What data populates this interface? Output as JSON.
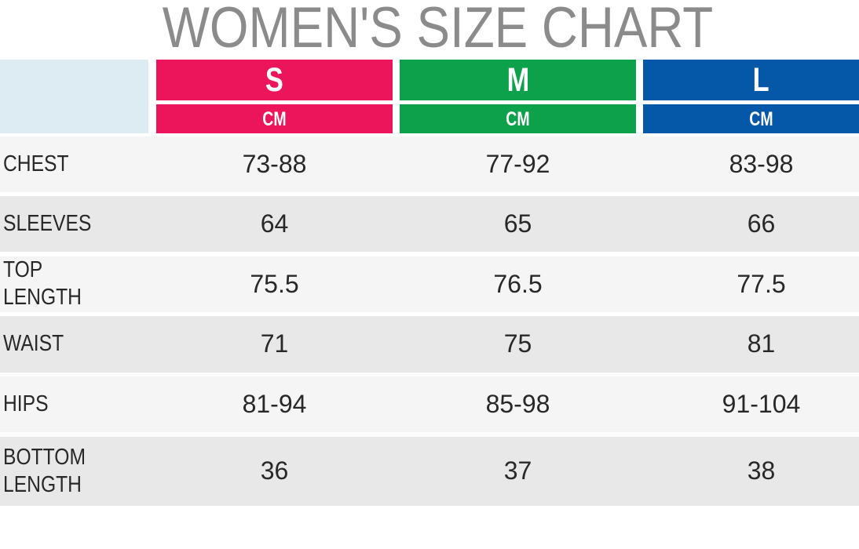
{
  "chart_data": {
    "type": "table",
    "title": "WOMEN'S SIZE CHART",
    "unit": "CM",
    "sizes": [
      "S",
      "M",
      "L"
    ],
    "rows": [
      {
        "label": "CHEST",
        "values": [
          "73-88",
          "77-92",
          "83-98"
        ]
      },
      {
        "label": "SLEEVES",
        "values": [
          "64",
          "65",
          "66"
        ]
      },
      {
        "label": "TOP LENGTH",
        "values": [
          "75.5",
          "76.5",
          "77.5"
        ]
      },
      {
        "label": "WAIST",
        "values": [
          "71",
          "75",
          "81"
        ]
      },
      {
        "label": "HIPS",
        "values": [
          "81-94",
          "85-98",
          "91-104"
        ]
      },
      {
        "label": "BOTTOM LENGTH",
        "values": [
          "36",
          "37",
          "38"
        ]
      }
    ]
  },
  "colors": {
    "size_s": "#ec145a",
    "size_m": "#0da14b",
    "size_l": "#0557a8",
    "corner_cell": "#dcecf2",
    "row_light": "#f6f5f6",
    "row_dark": "#e9e8e9",
    "title_text": "#8b8b8b",
    "body_text": "#282828"
  }
}
